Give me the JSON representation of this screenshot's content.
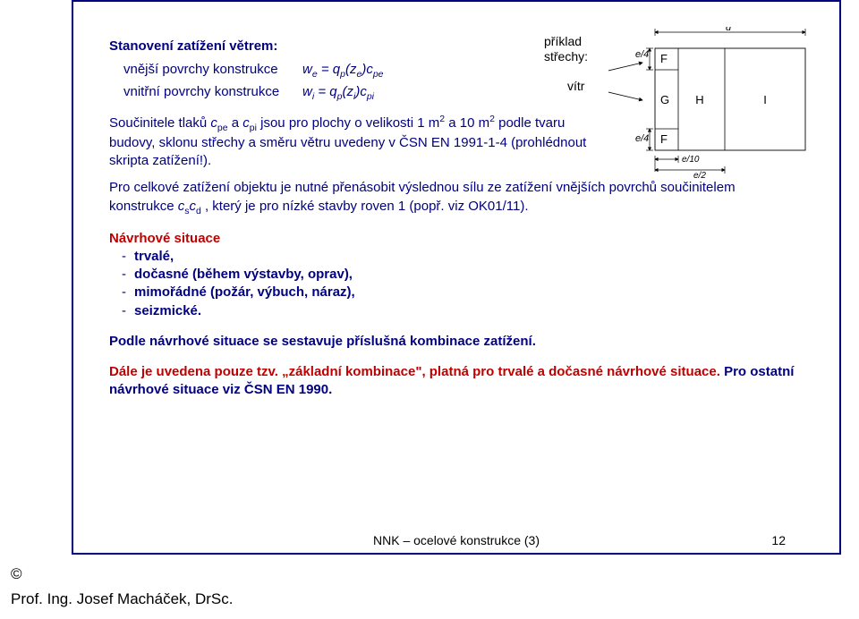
{
  "title": "Stanovení zatížení větrem:",
  "outer_label": "vnější povrchy konstrukce",
  "outer_eq_html": "<i>w</i><span class='sub'>e</span> = <i>q</i><span class='sub'>p</span>(<i>z</i><span class='sub'>e</span>)<i>c</i><span class='sub'>pe</span>",
  "inner_label": "vnitřní povrchy konstrukce",
  "inner_eq_html": "<i>w</i><span class='sub'>i</span> = <i>q</i><span class='sub'>p</span>(<i>z</i><span class='sub'>i</span>)<i>c</i><span class='sub'>pi</span>",
  "para1_html": "Součinitele tlaků <i>c</i><span class='sub'>pe</span> a <i>c</i><span class='sub'>pi</span> jsou pro plochy o velikosti 1 m<span class='sup'>2</span> a 10 m<span class='sup'>2</span> podle tvaru budovy, sklonu střechy a směru větru uvedeny v ČSN EN 1991-1-4 (prohlédnout skripta zatížení!).",
  "para2_html": "Pro celkové zatížení objektu je nutné přenásobit výslednou sílu ze zatížení vnějších povrchů součinitelem konstrukce <i>c</i><span class='sub'>s</span><i>c</i><span class='sub'>d</span> , který je pro nízké stavby roven 1 (popř. viz OK01/11).",
  "situace_head": "Návrhové situace",
  "situace_items": [
    {
      "txt": "trvalé,"
    },
    {
      "txt": "dočasné (během výstavby, oprav),"
    },
    {
      "txt": "mimořádné (požár, výbuch, náraz),"
    },
    {
      "txt": "seizmické."
    }
  ],
  "sentence1": "Podle návrhové situace se sestavuje příslušná kombinace zatížení.",
  "sentence2_pre": "Dále je uvedena pouze tzv. „základní kombinace\", platná  pro trvalé a dočasné návrhové situace.",
  "sentence2_post": " Pro ostatní návrhové situace viz ČSN EN 1990.",
  "footer": "NNK – ocelové konstrukce (3)",
  "page": "12",
  "copyright": "©",
  "author": "Prof. Ing. Josef Macháček, DrSc.",
  "diag": {
    "priklad": "příklad\nstřechy:",
    "vitr": "vítr",
    "d": "d",
    "e4a": "e/4",
    "e4b": "e/4",
    "F1": "F",
    "F2": "F",
    "G": "G",
    "H": "H",
    "I": "I",
    "e10": "e/10",
    "e2": "e/2"
  }
}
